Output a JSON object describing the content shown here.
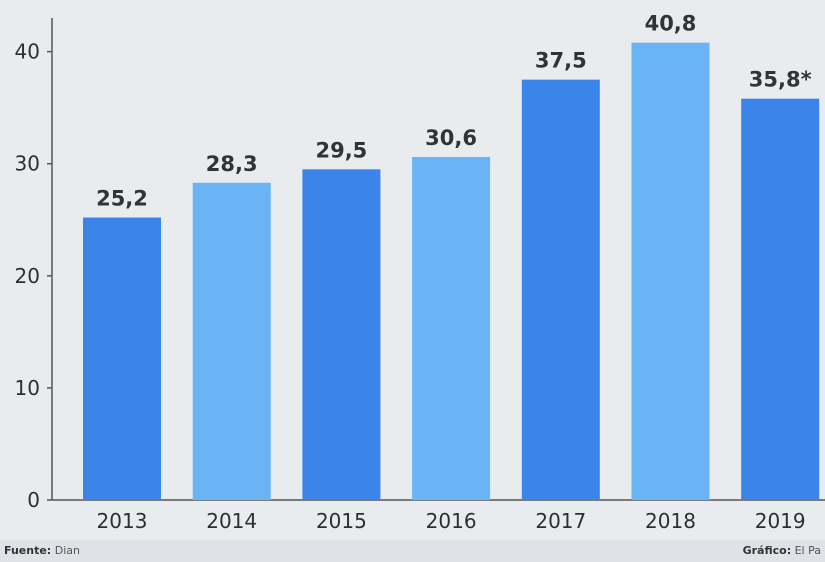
{
  "chart_data": {
    "type": "bar",
    "categories": [
      "2013",
      "2014",
      "2015",
      "2016",
      "2017",
      "2018",
      "2019"
    ],
    "values": [
      25.2,
      28.3,
      29.5,
      30.6,
      37.5,
      40.8,
      35.8
    ],
    "value_labels": [
      "25,2",
      "28,3",
      "29,5",
      "30,6",
      "37,5",
      "40,8",
      "35,8*"
    ],
    "ylim": [
      0,
      43
    ],
    "yticks": [
      0,
      10,
      20,
      30,
      40
    ],
    "grid": false,
    "colors": [
      "#3a84ea",
      "#6ab3f5",
      "#3a84ea",
      "#6ab3f5",
      "#3a84ea",
      "#6ab3f5",
      "#3a84ea"
    ]
  },
  "footer": {
    "source_label": "Fuente:",
    "source_value": "Dian",
    "credit_label": "Gráfico:",
    "credit_value": "El Pa"
  }
}
